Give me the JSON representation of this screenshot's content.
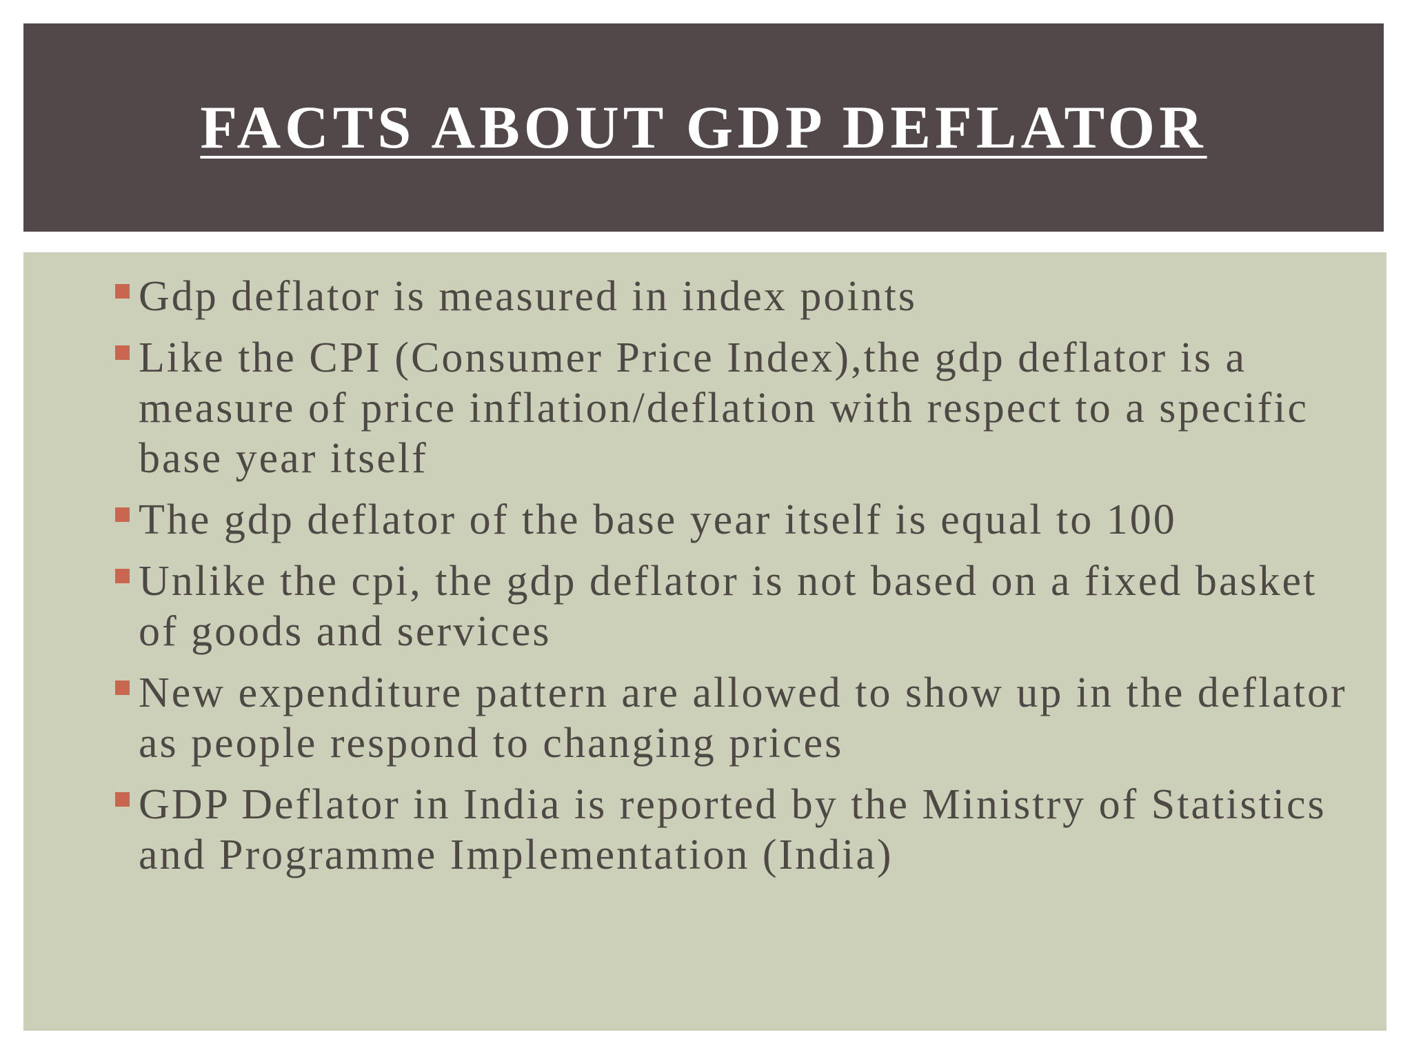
{
  "header": {
    "title": "FACTS ABOUT GDP DEFLATOR"
  },
  "bullets": [
    "Gdp deflator is measured in index points",
    "Like the CPI (Consumer Price Index),the gdp deflator is a measure of price inflation/deflation with respect to a specific base year itself",
    "The gdp deflator of the base year itself is equal to 100",
    "Unlike the cpi, the gdp deflator is not based on a fixed basket of goods and services",
    "New expenditure pattern are allowed to show up in the deflator as people respond to changing prices",
    "GDP Deflator in India is reported by the Ministry of Statistics and Programme Implementation (India)"
  ]
}
